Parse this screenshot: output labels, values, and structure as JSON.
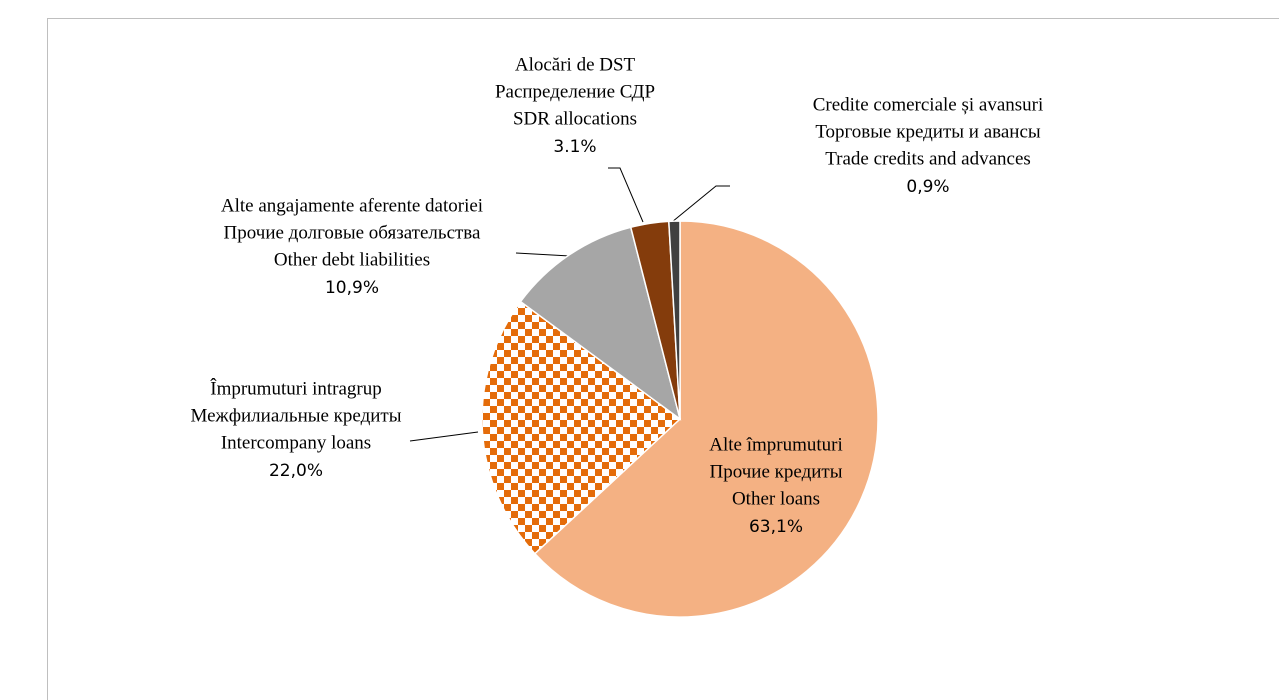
{
  "chart_data": {
    "type": "pie",
    "labels": [
      [
        "Alte împrumuturi",
        "Прочие кредиты",
        "Other loans"
      ],
      [
        "Împrumuturi intragrup",
        "Межфилиальные кредиты",
        "Intercompany loans"
      ],
      [
        "Alte angajamente aferente datoriei",
        "Прочие долговые обязательства",
        "Other debt liabilities"
      ],
      [
        "Alocări de DST",
        "Распределение СДР",
        "SDR allocations"
      ],
      [
        "Credite comerciale și avansuri",
        "Торговые кредиты и авансы",
        "Trade credits and advances"
      ]
    ],
    "values": [
      63.1,
      22.0,
      10.9,
      3.1,
      0.9
    ],
    "value_labels": [
      "63,1%",
      "22,0%",
      "10,9%",
      "3.1%",
      "0,9%"
    ],
    "colors": [
      "#F4B183",
      "pattern",
      "#A6A6A6",
      "#843C0C",
      "#404040"
    ]
  }
}
